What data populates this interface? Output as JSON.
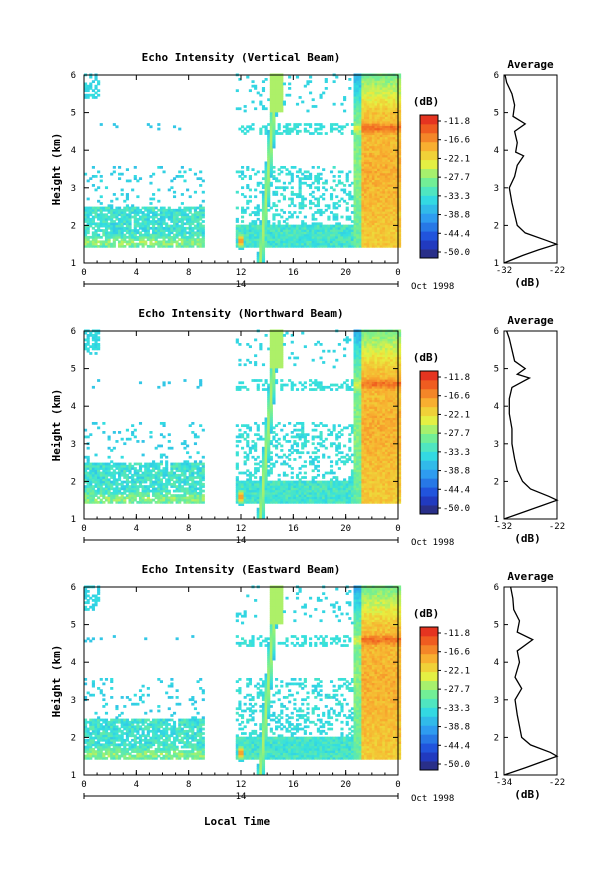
{
  "figure": {
    "x_axis_title": "Local Time",
    "date_label": "Oct 1998",
    "day_label": "14"
  },
  "chart_data": [
    {
      "type": "heatmap",
      "title": "Echo Intensity (Vertical Beam)",
      "ylabel": "Height (km)",
      "xlabel": "",
      "x_ticks": [
        "0",
        "4",
        "8",
        "12",
        "16",
        "20",
        "0"
      ],
      "y_ticks": [
        "1",
        "2",
        "3",
        "4",
        "5",
        "6"
      ],
      "xlim": [
        0,
        24
      ],
      "ylim": [
        1,
        6
      ],
      "colorbar": {
        "label": "(dB)",
        "ticks": [
          "-11.8",
          "-16.6",
          "-22.1",
          "-27.7",
          "-33.3",
          "-38.8",
          "-44.4",
          "-50.0"
        ],
        "range": [
          -50.0,
          -11.8
        ]
      },
      "data_gap_hours": [
        9.2,
        11.5
      ],
      "convective_start_hours": 20.6,
      "average": {
        "title": "Average",
        "xlabel": "(dB)",
        "x_ticks": [
          "-32",
          "-22"
        ],
        "xlim": [
          -32,
          -22
        ],
        "height_km": [
          1.0,
          1.2,
          1.35,
          1.5,
          1.6,
          1.8,
          2.0,
          2.3,
          2.6,
          3.0,
          3.3,
          3.6,
          3.85,
          3.95,
          4.2,
          4.5,
          4.7,
          4.9,
          5.2,
          5.5,
          5.8,
          6.0
        ],
        "values_db": [
          -32.0,
          -28.5,
          -25.5,
          -22.1,
          -24.0,
          -28.0,
          -29.5,
          -30.0,
          -30.5,
          -31.0,
          -30.0,
          -29.5,
          -28.3,
          -29.8,
          -29.5,
          -30.0,
          -28.0,
          -30.3,
          -30.0,
          -30.5,
          -31.5,
          -31.8
        ]
      }
    },
    {
      "type": "heatmap",
      "title": "Echo Intensity (Northward Beam)",
      "ylabel": "Height (km)",
      "xlabel": "",
      "x_ticks": [
        "0",
        "4",
        "8",
        "12",
        "16",
        "20",
        "0"
      ],
      "y_ticks": [
        "1",
        "2",
        "3",
        "4",
        "5",
        "6"
      ],
      "xlim": [
        0,
        24
      ],
      "ylim": [
        1,
        6
      ],
      "colorbar": {
        "label": "(dB)",
        "ticks": [
          "-11.8",
          "-16.6",
          "-22.1",
          "-27.7",
          "-33.3",
          "-38.8",
          "-44.4",
          "-50.0"
        ],
        "range": [
          -50.0,
          -11.8
        ]
      },
      "data_gap_hours": [
        9.2,
        11.5
      ],
      "convective_start_hours": 20.6,
      "average": {
        "title": "Average",
        "xlabel": "(dB)",
        "x_ticks": [
          "-32",
          "-22"
        ],
        "xlim": [
          -32,
          -22
        ],
        "height_km": [
          1.0,
          1.2,
          1.35,
          1.5,
          1.6,
          1.8,
          2.0,
          2.3,
          2.6,
          3.0,
          3.4,
          3.8,
          4.2,
          4.5,
          4.75,
          4.85,
          5.0,
          5.2,
          5.5,
          5.8,
          6.0
        ],
        "values_db": [
          -32.0,
          -28.0,
          -25.0,
          -22.0,
          -23.5,
          -27.0,
          -28.5,
          -29.5,
          -30.0,
          -30.5,
          -30.5,
          -31.0,
          -31.0,
          -30.5,
          -27.2,
          -29.5,
          -28.0,
          -30.0,
          -30.5,
          -31.0,
          -31.5
        ]
      }
    },
    {
      "type": "heatmap",
      "title": "Echo Intensity (Eastward Beam)",
      "ylabel": "Height (km)",
      "xlabel": "Local Time",
      "x_ticks": [
        "0",
        "4",
        "8",
        "12",
        "16",
        "20",
        "0"
      ],
      "y_ticks": [
        "1",
        "2",
        "3",
        "4",
        "5",
        "6"
      ],
      "xlim": [
        0,
        24
      ],
      "ylim": [
        1,
        6
      ],
      "colorbar": {
        "label": "(dB)",
        "ticks": [
          "-11.8",
          "-16.6",
          "-22.1",
          "-27.7",
          "-33.3",
          "-38.8",
          "-44.4",
          "-50.0"
        ],
        "range": [
          -50.0,
          -11.8
        ]
      },
      "data_gap_hours": [
        9.2,
        11.5
      ],
      "convective_start_hours": 20.6,
      "average": {
        "title": "Average",
        "xlabel": "(dB)",
        "x_ticks": [
          "-34",
          "-22"
        ],
        "xlim": [
          -34,
          -22
        ],
        "height_km": [
          1.0,
          1.2,
          1.35,
          1.5,
          1.6,
          1.8,
          2.0,
          2.3,
          2.6,
          3.0,
          3.3,
          3.6,
          4.0,
          4.3,
          4.6,
          4.8,
          5.1,
          5.4,
          5.7,
          6.0
        ],
        "values_db": [
          -34.0,
          -29.0,
          -25.5,
          -22.0,
          -23.5,
          -28.0,
          -30.0,
          -30.5,
          -31.0,
          -31.5,
          -30.0,
          -31.5,
          -30.5,
          -31.0,
          -27.5,
          -31.0,
          -30.5,
          -31.8,
          -32.0,
          -32.5
        ]
      }
    }
  ]
}
